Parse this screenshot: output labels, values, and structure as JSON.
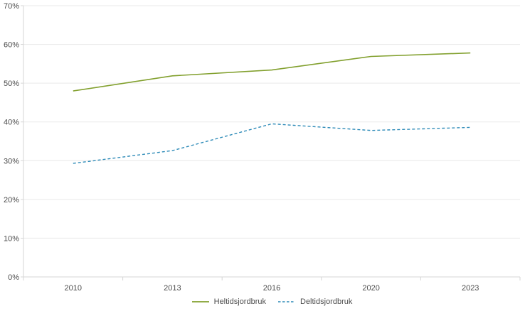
{
  "chart": {
    "background_color": "#ffffff",
    "gridline_color": "#e9e9e9",
    "axis_color": "#d6d6d6",
    "tick_label_color": "#4d4d4d"
  },
  "chart_data": {
    "type": "line",
    "title": "",
    "xlabel": "",
    "ylabel": "",
    "categories": [
      "2010",
      "2013",
      "2016",
      "2020",
      "2023"
    ],
    "series": [
      {
        "name": "Heltidsjordbruk",
        "values": [
          48.0,
          51.9,
          53.4,
          56.9,
          57.8
        ],
        "color": "#82a02e",
        "line_style": "solid"
      },
      {
        "name": "Deltidsjordbruk",
        "values": [
          29.3,
          32.6,
          39.5,
          37.8,
          38.6
        ],
        "color": "#2e8bb8",
        "line_style": "dashed"
      }
    ],
    "ylim": [
      0,
      70
    ],
    "ytick_step": 10,
    "ytick_labels": [
      "0%",
      "10%",
      "20%",
      "30%",
      "40%",
      "50%",
      "60%",
      "70%"
    ],
    "grid": true,
    "legend_position": "bottom"
  }
}
